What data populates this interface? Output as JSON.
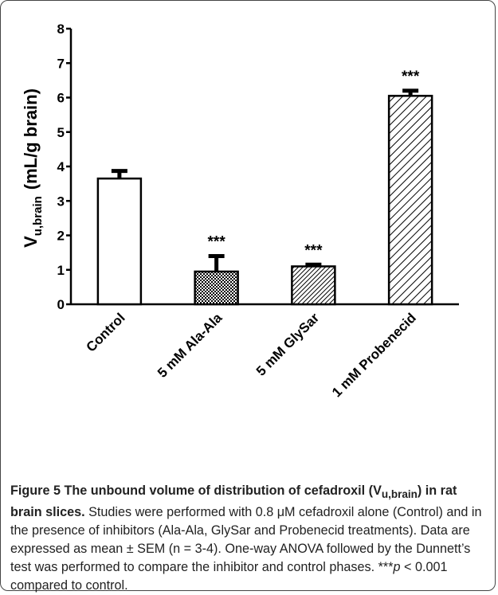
{
  "chart_data": {
    "type": "bar",
    "y_label": {
      "main": "V",
      "sub": "u,brain",
      "rest": "(mL/g brain)"
    },
    "categories": [
      "Control",
      "5 mM Ala-Ala",
      "5 mM GlySar",
      "1 mM Probenecid"
    ],
    "values": [
      3.65,
      0.95,
      1.1,
      6.05
    ],
    "errors": [
      0.22,
      0.45,
      0.05,
      0.15
    ],
    "significance": [
      null,
      "***",
      "***",
      "***"
    ],
    "patterns": [
      "none",
      "dots",
      "dense-diagonal",
      "diagonal"
    ],
    "color": "#000000",
    "ylim": [
      0,
      8
    ],
    "yticks": [
      0,
      1,
      2,
      3,
      4,
      5,
      6,
      7,
      8
    ],
    "grid": false
  },
  "caption": {
    "label": "Figure 5",
    "title_before": "The unbound volume of distribution of cefadroxil (",
    "title_var": "V",
    "title_sub": "u,brain",
    "title_after": ") in rat brain slices.",
    "body_before": "Studies were performed with 0.8 μM cefadroxil alone (Control) and in the presence of inhibitors (Ala-Ala, GlySar and Probenecid treatments). Data are expressed as mean ± SEM (n = 3-4). One-way ANOVA followed by the Dunnett’s test was performed to compare the inhibitor and control phases. ***",
    "body_italic": "p",
    "body_after": " < 0.001 compared to control."
  }
}
